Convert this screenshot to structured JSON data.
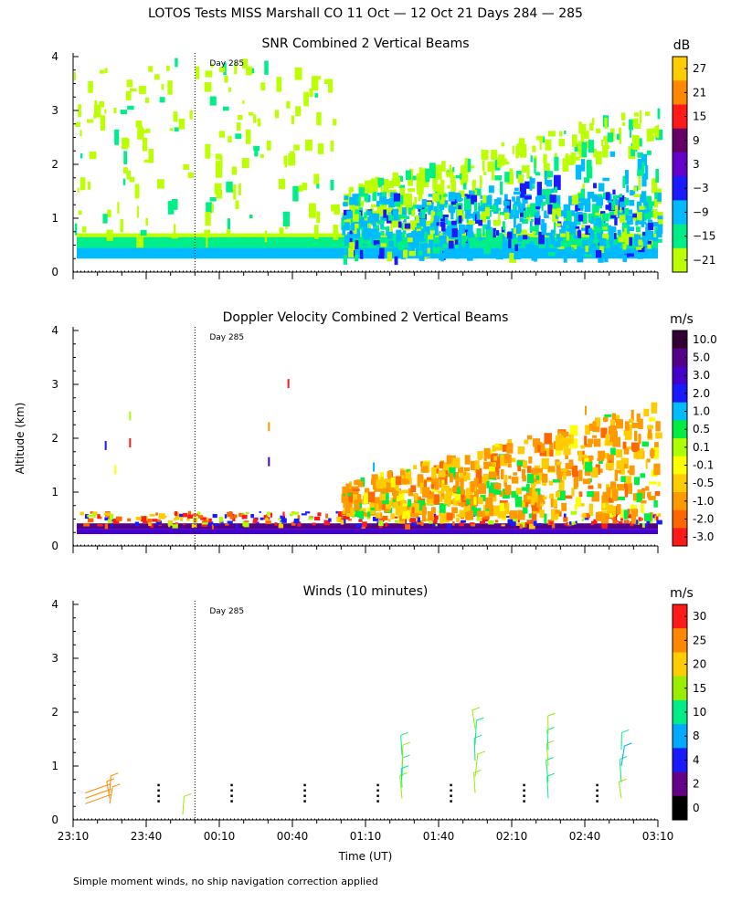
{
  "figure": {
    "title": "LOTOS Tests MISS Marshall CO  11 Oct — 12 Oct 21 Days 284 — 285",
    "footnote": "Simple moment winds, no ship navigation correction applied",
    "ylabel": "Altitude (km)",
    "xlabel": "Time (UT)",
    "day_marker_label": "Day 285",
    "day_marker_time": "00:00"
  },
  "chart_data": [
    {
      "type": "heatmap",
      "title": "SNR Combined 2 Vertical Beams",
      "units": "dB",
      "xlim": [
        "23:10",
        "03:10"
      ],
      "ylim": [
        0,
        4
      ],
      "yticks": [
        "0",
        "1",
        "2",
        "3",
        "4"
      ],
      "colorbar": {
        "labels": [
          "27",
          "21",
          "15",
          "9",
          "3",
          "−3",
          "−9",
          "−15",
          "−21"
        ],
        "colors": [
          "#ffcc00",
          "#ff8800",
          "#ff1a1a",
          "#660066",
          "#6600cc",
          "#1a1aff",
          "#00bbff",
          "#00ee88",
          "#bbff00"
        ]
      },
      "description_bands": [
        {
          "alt_km": [
            0.25,
            0.45
          ],
          "value_db": -9
        },
        {
          "alt_km": [
            0.45,
            0.65
          ],
          "value_db": -15
        }
      ]
    },
    {
      "type": "heatmap",
      "title": "Doppler Velocity Combined 2 Vertical Beams",
      "units": "m/s",
      "xlim": [
        "23:10",
        "03:10"
      ],
      "ylim": [
        0,
        4
      ],
      "yticks": [
        "0",
        "1",
        "2",
        "3",
        "4"
      ],
      "colorbar": {
        "labels": [
          "10.0",
          "5.0",
          "3.0",
          "2.0",
          "1.0",
          "0.5",
          "0.1",
          "-0.1",
          "-0.5",
          "-1.0",
          "-2.0",
          "-3.0"
        ],
        "colors": [
          "#330033",
          "#550088",
          "#4400cc",
          "#1a1aff",
          "#00bbff",
          "#00ee44",
          "#aaff00",
          "#ffff00",
          "#ffcc00",
          "#ff9900",
          "#ff6600",
          "#ff1a1a"
        ]
      }
    },
    {
      "type": "scatter",
      "title": "Winds (10 minutes)",
      "units": "m/s",
      "xlim": [
        "23:10",
        "03:10"
      ],
      "ylim": [
        0,
        4
      ],
      "yticks": [
        "0",
        "1",
        "2",
        "3",
        "4"
      ],
      "xticks": [
        "23:10",
        "23:40",
        "00:10",
        "00:40",
        "01:10",
        "01:40",
        "02:10",
        "02:40",
        "03:10"
      ],
      "colorbar": {
        "labels": [
          "30",
          "25",
          "20",
          "15",
          "10",
          "8",
          "4",
          "2",
          "0"
        ],
        "colors": [
          "#ff1a1a",
          "#ff8800",
          "#ffcc00",
          "#99ee00",
          "#00ee88",
          "#00aaff",
          "#1a1aff",
          "#660088",
          "#000000"
        ]
      },
      "profiles": [
        {
          "time": "23:25",
          "heights_km": [
            0.3,
            0.4,
            0.5
          ],
          "speed": 24
        },
        {
          "time": "23:55",
          "heights_km": [
            0.1
          ],
          "speed": 16
        },
        {
          "time": "01:25",
          "heights_km": [
            0.4,
            0.6,
            0.8,
            1.0,
            1.2
          ],
          "speed": 14
        },
        {
          "time": "01:55",
          "heights_km": [
            0.5,
            0.8,
            1.1,
            1.4,
            1.7
          ],
          "speed": 18
        },
        {
          "time": "02:25",
          "heights_km": [
            0.4,
            0.7,
            1.0,
            1.3,
            1.6
          ],
          "speed": 17
        },
        {
          "time": "02:55",
          "heights_km": [
            0.4,
            0.7,
            1.0,
            1.3
          ],
          "speed": 12
        }
      ]
    }
  ]
}
